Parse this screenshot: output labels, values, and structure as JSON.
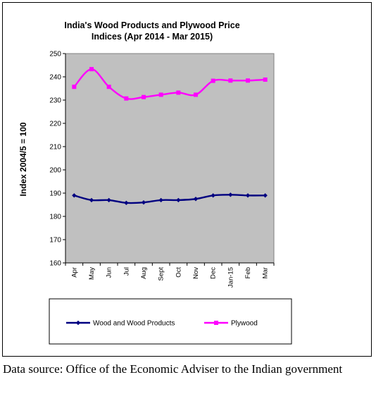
{
  "chart_data": {
    "type": "line",
    "title_lines": [
      "India's  Wood Products and Plywood Price",
      "Indices  (Apr 2014 - Mar 2015)"
    ],
    "ylabel": "Index 2004/5 = 100",
    "xlabel": "",
    "ylim": [
      160,
      250
    ],
    "yticks": [
      160,
      170,
      180,
      190,
      200,
      210,
      220,
      230,
      240,
      250
    ],
    "categories": [
      "Apr",
      "May",
      "Jun",
      "Jul",
      "Aug",
      "Sept",
      "Oct",
      "Nov",
      "Dec",
      "Jan-15",
      "Feb",
      "Mar"
    ],
    "plot_background": "#C0C0C0",
    "grid": false,
    "legend_position": "bottom",
    "series": [
      {
        "name": "Wood and Wood Products",
        "color": "#000080",
        "marker": "diamond",
        "values": [
          189,
          187,
          187,
          185.8,
          186,
          187,
          187,
          187.5,
          189,
          189.3,
          189,
          189
        ]
      },
      {
        "name": "Plywood",
        "color": "#FF00FF",
        "marker": "square",
        "values": [
          235.7,
          243.3,
          235.7,
          230.7,
          231.3,
          232.3,
          233.2,
          232.3,
          238.3,
          238.4,
          238.4,
          238.8
        ]
      }
    ]
  },
  "source_note": "Data source: Office of the Economic Adviser to the Indian government"
}
